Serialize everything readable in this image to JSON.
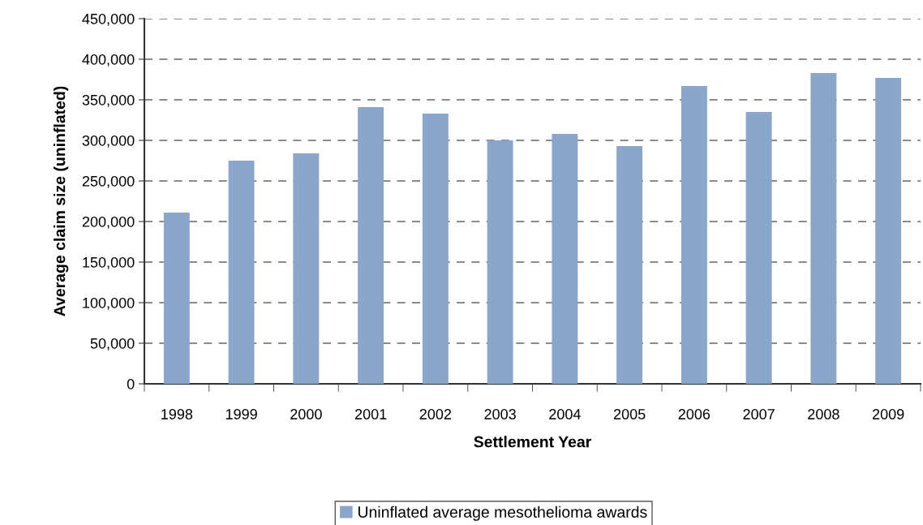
{
  "chart_data": {
    "type": "bar",
    "xlabel": "Settlement Year",
    "ylabel": "Average claim size (uninflated)",
    "categories": [
      "1998",
      "1999",
      "2000",
      "2001",
      "2002",
      "2003",
      "2004",
      "2005",
      "2006",
      "2007",
      "2008",
      "2009"
    ],
    "series": [
      {
        "name": "Uninflated average mesothelioma awards",
        "color": "#8aa6cb",
        "values": [
          211000,
          275000,
          284000,
          341000,
          333000,
          300000,
          308000,
          293000,
          367000,
          335000,
          383000,
          377000
        ]
      }
    ],
    "ylim": [
      0,
      450000
    ],
    "yticks": [
      0,
      {
        "value": 50000,
        "label": "50,000"
      },
      {
        "value": 100000,
        "label": "100,000"
      },
      {
        "value": 150000,
        "label": "150,000"
      },
      {
        "value": 200000,
        "label": "200,000"
      },
      {
        "value": 250000,
        "label": "250,000"
      },
      {
        "value": 300000,
        "label": "300,000"
      },
      {
        "value": 350000,
        "label": "350,000"
      },
      {
        "value": 400000,
        "label": "400,000"
      },
      {
        "value": 450000,
        "label": "450,000"
      }
    ],
    "grid": "y",
    "legend": "bottom"
  }
}
